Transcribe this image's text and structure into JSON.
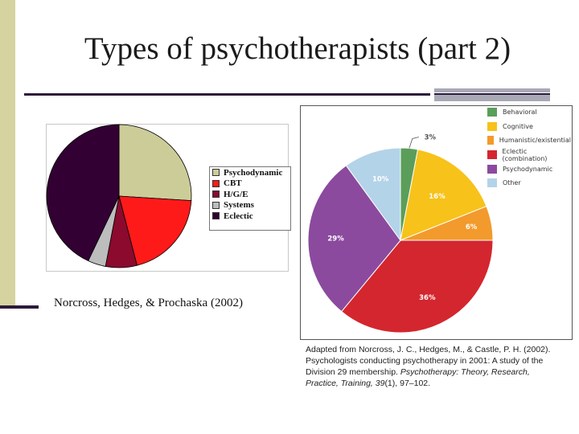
{
  "slide": {
    "title": "Types of psychotherapists (part 2)"
  },
  "chart_left": {
    "citation": "Norcross, Hedges, & Prochaska (2002)"
  },
  "chart_right": {
    "caption_plain1": "Adapted from Norcross, J. C., Hedges, M., & Castle, P. H. (2002). Psychologists conducting psychotherapy in 2001: A study of the Division 29 membership. ",
    "caption_italic1": "Psychotherapy: Theory, Research, Practice, Training, 39",
    "caption_plain2": "(1), 97–102."
  },
  "chart_data": [
    {
      "type": "pie",
      "title": "",
      "categories": [
        "Psychodynamic",
        "CBT",
        "H/G/E",
        "Systems",
        "Eclectic"
      ],
      "values": [
        26,
        20,
        7,
        4,
        43
      ],
      "colors": [
        "#cccc99",
        "#ff1a1a",
        "#8b0a2e",
        "#bdbdbd",
        "#330033"
      ],
      "legend": "right"
    },
    {
      "type": "pie",
      "title": "",
      "categories": [
        "Behavioral",
        "Cognitive",
        "Humanistic/existential",
        "Eclectic (combination)",
        "Psychodynamic",
        "Other"
      ],
      "values": [
        3,
        16,
        6,
        36,
        29,
        10
      ],
      "labels": [
        "3%",
        "16%",
        "6%",
        "36%",
        "29%",
        "10%"
      ],
      "colors": [
        "#5a9e5a",
        "#f7c21a",
        "#f39a2c",
        "#d4262e",
        "#8b4a9e",
        "#b3d3e8"
      ],
      "legend": "right"
    }
  ]
}
